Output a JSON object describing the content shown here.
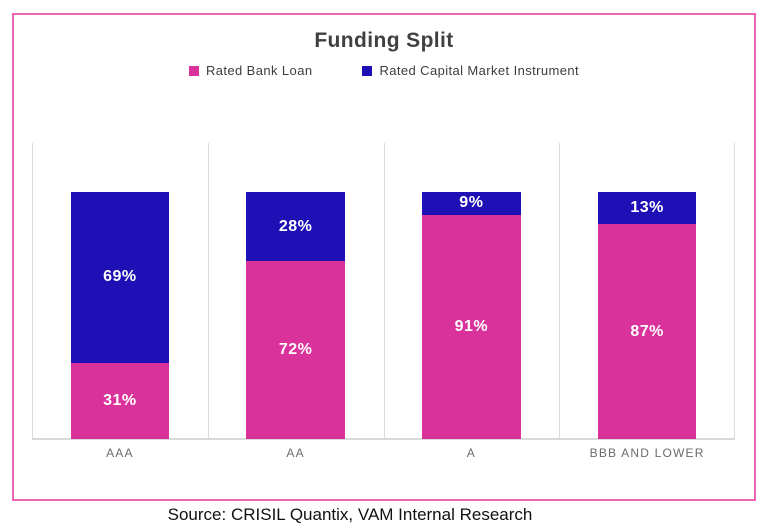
{
  "title": "Funding Split",
  "source_note": "Source: CRISIL Quantix, VAM Internal Research",
  "styles": {
    "card_border_color": "#ec64b6",
    "grid_line_color": "#dcdcdc",
    "axis_line_color": "#d9d9d9",
    "title_color": "#404040",
    "category_label_color": "#6b6b6b",
    "value_label_color": "#ffffff"
  },
  "chart_data": {
    "type": "bar",
    "stacked": true,
    "title": "Funding Split",
    "categories": [
      "AAA",
      "AA",
      "A",
      "BBB AND LOWER"
    ],
    "series": [
      {
        "name": "Rated Bank Loan",
        "color": "#d9329b",
        "values": [
          31,
          72,
          91,
          87
        ]
      },
      {
        "name": "Rated Capital Market Instrument",
        "color": "#1e10b5",
        "values": [
          69,
          28,
          9,
          13
        ]
      }
    ],
    "value_suffix": "%",
    "ylim": [
      0,
      120
    ],
    "grid": "vertical lines at category boundaries",
    "legend_position": "top",
    "value_labels": "inside segments, white bold"
  }
}
